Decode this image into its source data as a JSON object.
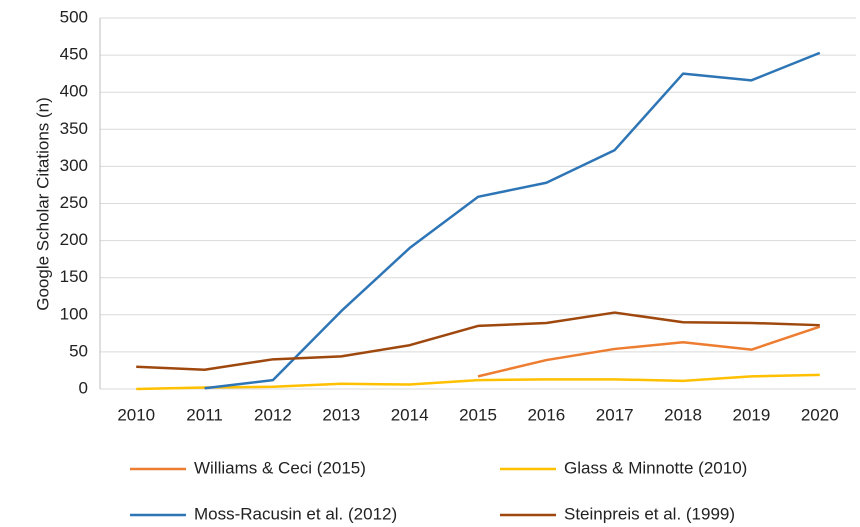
{
  "chart_data": {
    "type": "line",
    "y_label": "Google Scholar Citations (n)",
    "x": [
      2010,
      2011,
      2012,
      2013,
      2014,
      2015,
      2016,
      2017,
      2018,
      2019,
      2020
    ],
    "xlim": [
      2009.47,
      2020.53
    ],
    "xticks": [
      2010,
      2011,
      2012,
      2013,
      2014,
      2015,
      2016,
      2017,
      2018,
      2019,
      2020
    ],
    "ylim": [
      0,
      500
    ],
    "yticks": [
      0,
      50,
      100,
      150,
      200,
      250,
      300,
      350,
      400,
      450,
      500
    ],
    "grid": true,
    "legend": "bottom",
    "series": [
      {
        "name": "Williams & Ceci (2015)",
        "color": "#ed7d31",
        "values": [
          null,
          null,
          null,
          null,
          null,
          17,
          39,
          54,
          63,
          53,
          84
        ]
      },
      {
        "name": "Glass & Minnotte (2010)",
        "color": "#ffc000",
        "values": [
          0,
          2,
          3,
          7,
          6,
          12,
          13,
          13,
          11,
          17,
          19
        ]
      },
      {
        "name": "Moss-Racusin et al. (2012)",
        "color": "#2e75b6",
        "values": [
          null,
          1,
          12,
          105,
          190,
          259,
          278,
          322,
          425,
          416,
          453
        ]
      },
      {
        "name": "Steinpreis et al. (1999)",
        "color": "#9e480e",
        "values": [
          30,
          26,
          40,
          44,
          59,
          85,
          89,
          103,
          90,
          89,
          86
        ]
      }
    ]
  }
}
